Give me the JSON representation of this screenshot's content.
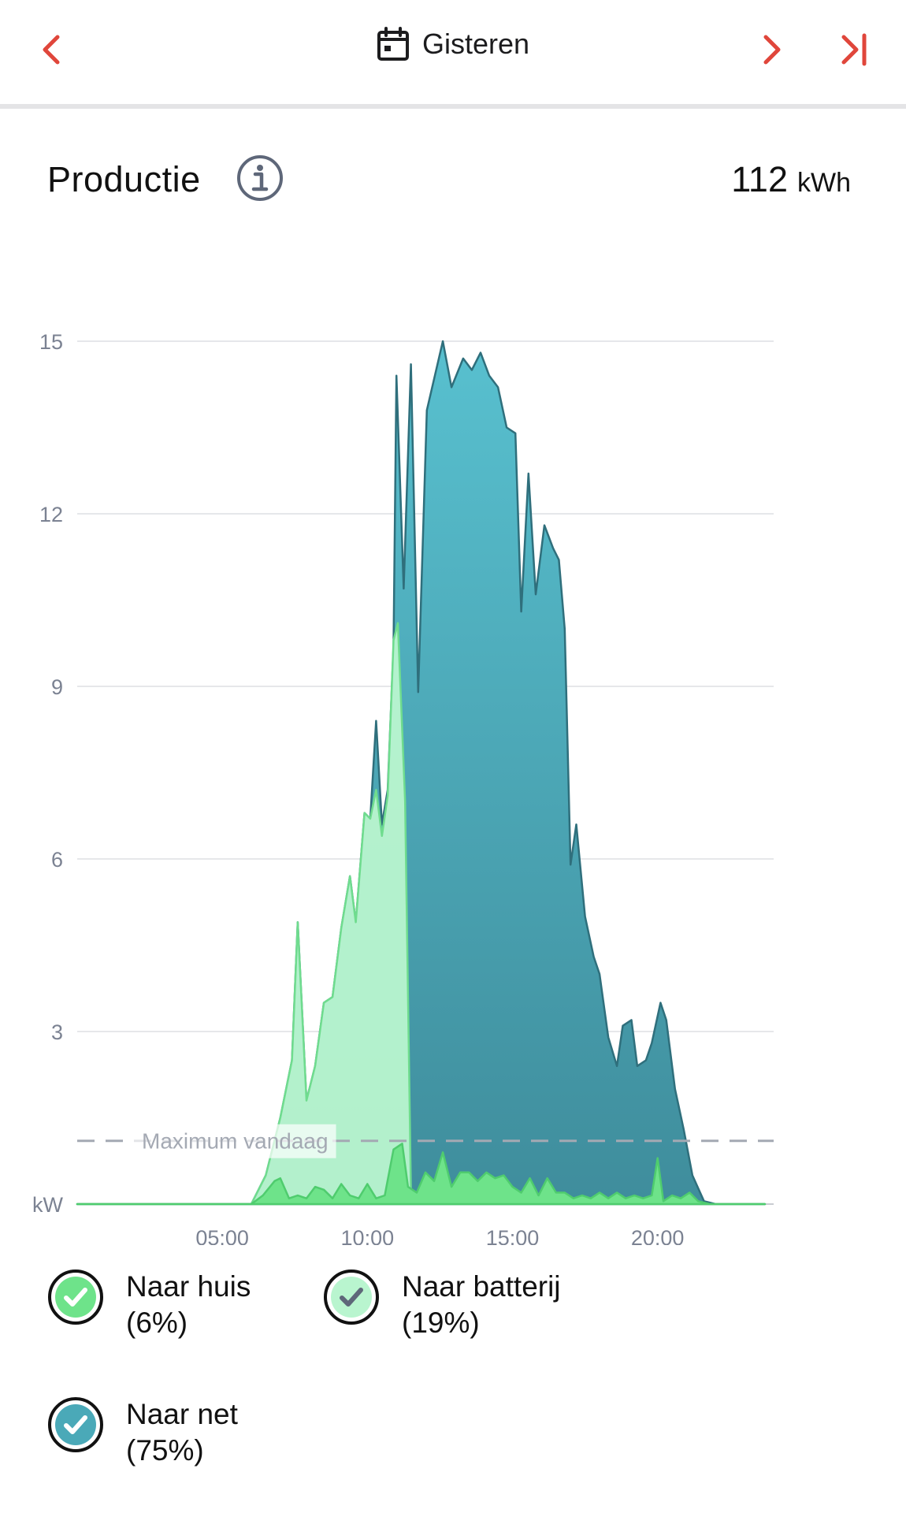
{
  "header": {
    "date_label": "Gisteren",
    "icons": {
      "prev": "chevron-left-icon",
      "next": "chevron-right-icon",
      "latest": "skip-to-end-icon",
      "calendar": "calendar-icon"
    }
  },
  "colors": {
    "accent": "#e0463b",
    "grid_color": "#a4a9b3",
    "series_net": "#4aa9b8",
    "series_battery": "#b9f5cf",
    "series_house": "#6ee38a"
  },
  "section": {
    "title": "Productie",
    "info_icon": "info-icon",
    "total_value": "112",
    "total_unit": "kWh"
  },
  "chart_data": {
    "type": "area",
    "ylabel": "kW",
    "ylim": [
      0,
      15
    ],
    "yticks": [
      "15",
      "12",
      "9",
      "6",
      "3"
    ],
    "xlim": [
      0,
      24
    ],
    "xticks": [
      {
        "label": "05:00",
        "value": 5
      },
      {
        "label": "10:00",
        "value": 10
      },
      {
        "label": "15:00",
        "value": 15
      },
      {
        "label": "20:00",
        "value": 20
      }
    ],
    "grid": true,
    "reference_line": {
      "label": "Maximum vandaag",
      "y": 1.1
    },
    "series": [
      {
        "name": "Naar net",
        "color": "#4aa9b8",
        "points": [
          [
            0,
            0
          ],
          [
            6,
            0
          ],
          [
            6.5,
            0.5
          ],
          [
            7,
            1.5
          ],
          [
            7.4,
            2.5
          ],
          [
            7.6,
            4.9
          ],
          [
            7.9,
            1.8
          ],
          [
            8.2,
            2.4
          ],
          [
            8.5,
            3.5
          ],
          [
            8.8,
            3.6
          ],
          [
            9.1,
            4.8
          ],
          [
            9.4,
            5.7
          ],
          [
            9.6,
            4.9
          ],
          [
            9.9,
            6.8
          ],
          [
            10.1,
            6.7
          ],
          [
            10.3,
            8.4
          ],
          [
            10.5,
            6.6
          ],
          [
            10.7,
            7.2
          ],
          [
            10.9,
            9.7
          ],
          [
            11.0,
            14.4
          ],
          [
            11.25,
            10.7
          ],
          [
            11.5,
            14.6
          ],
          [
            11.75,
            8.9
          ],
          [
            12.05,
            13.8
          ],
          [
            12.6,
            15.0
          ],
          [
            12.9,
            14.2
          ],
          [
            13.3,
            14.7
          ],
          [
            13.6,
            14.5
          ],
          [
            13.9,
            14.8
          ],
          [
            14.2,
            14.4
          ],
          [
            14.5,
            14.2
          ],
          [
            14.8,
            13.5
          ],
          [
            15.1,
            13.4
          ],
          [
            15.3,
            10.3
          ],
          [
            15.55,
            12.7
          ],
          [
            15.8,
            10.6
          ],
          [
            16.1,
            11.8
          ],
          [
            16.4,
            11.4
          ],
          [
            16.6,
            11.2
          ],
          [
            16.8,
            10.0
          ],
          [
            17.0,
            5.9
          ],
          [
            17.2,
            6.6
          ],
          [
            17.5,
            5.0
          ],
          [
            17.8,
            4.3
          ],
          [
            18.0,
            4.0
          ],
          [
            18.3,
            2.9
          ],
          [
            18.6,
            2.4
          ],
          [
            18.8,
            3.1
          ],
          [
            19.1,
            3.2
          ],
          [
            19.3,
            2.4
          ],
          [
            19.6,
            2.5
          ],
          [
            19.8,
            2.8
          ],
          [
            20.1,
            3.5
          ],
          [
            20.3,
            3.2
          ],
          [
            20.6,
            2.0
          ],
          [
            20.9,
            1.3
          ],
          [
            21.2,
            0.5
          ],
          [
            21.6,
            0.05
          ],
          [
            22,
            0
          ],
          [
            23.7,
            0
          ]
        ]
      },
      {
        "name": "Naar batterij",
        "color": "#b9f5cf",
        "points": [
          [
            0,
            0
          ],
          [
            6,
            0
          ],
          [
            6.5,
            0.5
          ],
          [
            7,
            1.5
          ],
          [
            7.4,
            2.5
          ],
          [
            7.6,
            4.9
          ],
          [
            7.9,
            1.8
          ],
          [
            8.2,
            2.4
          ],
          [
            8.5,
            3.5
          ],
          [
            8.8,
            3.6
          ],
          [
            9.1,
            4.8
          ],
          [
            9.4,
            5.7
          ],
          [
            9.6,
            4.9
          ],
          [
            9.9,
            6.8
          ],
          [
            10.1,
            6.7
          ],
          [
            10.3,
            7.2
          ],
          [
            10.5,
            6.4
          ],
          [
            10.7,
            7.1
          ],
          [
            10.9,
            9.8
          ],
          [
            11.05,
            10.1
          ],
          [
            11.3,
            7.0
          ],
          [
            11.5,
            0.2
          ],
          [
            11.7,
            0.1
          ],
          [
            12.0,
            0
          ],
          [
            23.7,
            0
          ]
        ]
      },
      {
        "name": "Naar huis",
        "color": "#6ee38a",
        "points": [
          [
            0,
            0
          ],
          [
            6,
            0
          ],
          [
            6.4,
            0.15
          ],
          [
            6.8,
            0.4
          ],
          [
            7.0,
            0.45
          ],
          [
            7.3,
            0.1
          ],
          [
            7.6,
            0.15
          ],
          [
            7.9,
            0.1
          ],
          [
            8.2,
            0.3
          ],
          [
            8.5,
            0.25
          ],
          [
            8.8,
            0.1
          ],
          [
            9.1,
            0.35
          ],
          [
            9.4,
            0.15
          ],
          [
            9.7,
            0.1
          ],
          [
            10.0,
            0.35
          ],
          [
            10.3,
            0.1
          ],
          [
            10.6,
            0.15
          ],
          [
            10.9,
            0.95
          ],
          [
            11.2,
            1.05
          ],
          [
            11.4,
            0.3
          ],
          [
            11.7,
            0.2
          ],
          [
            12.0,
            0.55
          ],
          [
            12.3,
            0.4
          ],
          [
            12.6,
            0.9
          ],
          [
            12.9,
            0.3
          ],
          [
            13.2,
            0.55
          ],
          [
            13.5,
            0.55
          ],
          [
            13.8,
            0.4
          ],
          [
            14.1,
            0.55
          ],
          [
            14.4,
            0.45
          ],
          [
            14.7,
            0.5
          ],
          [
            15.0,
            0.3
          ],
          [
            15.3,
            0.2
          ],
          [
            15.6,
            0.45
          ],
          [
            15.9,
            0.15
          ],
          [
            16.2,
            0.45
          ],
          [
            16.5,
            0.2
          ],
          [
            16.8,
            0.2
          ],
          [
            17.1,
            0.1
          ],
          [
            17.4,
            0.15
          ],
          [
            17.7,
            0.1
          ],
          [
            18.0,
            0.2
          ],
          [
            18.3,
            0.1
          ],
          [
            18.6,
            0.2
          ],
          [
            18.9,
            0.1
          ],
          [
            19.2,
            0.15
          ],
          [
            19.5,
            0.1
          ],
          [
            19.8,
            0.15
          ],
          [
            20.0,
            0.8
          ],
          [
            20.2,
            0.05
          ],
          [
            20.5,
            0.15
          ],
          [
            20.8,
            0.1
          ],
          [
            21.1,
            0.2
          ],
          [
            21.4,
            0.05
          ],
          [
            21.8,
            0
          ],
          [
            23.7,
            0
          ]
        ]
      }
    ]
  },
  "legend": [
    {
      "label": "Naar huis",
      "percent": "(6%)",
      "checked": true,
      "color": "#6ee38a",
      "check_color": "#ffffff"
    },
    {
      "label": "Naar batterij",
      "percent": "(19%)",
      "checked": true,
      "color": "#b9f5cf",
      "check_color": "#5e6779"
    },
    {
      "label": "Naar net",
      "percent": "(75%)",
      "checked": true,
      "color": "#4aa9b8",
      "check_color": "#ffffff"
    }
  ]
}
